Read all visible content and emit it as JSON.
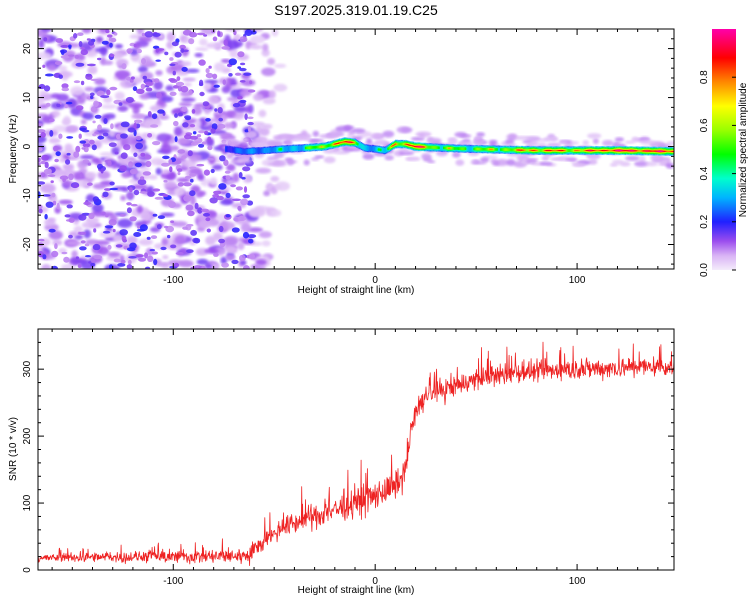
{
  "title": "S197.2025.319.01.19.C25",
  "chart_data": [
    {
      "type": "heatmap",
      "xlabel": "Height of straight line (km)",
      "ylabel": "Frequency (Hz)",
      "xlim": [
        -167,
        148
      ],
      "ylim": [
        -25,
        24
      ],
      "xticks": [
        -100,
        0,
        100
      ],
      "yticks": [
        -20,
        -10,
        0,
        10,
        20
      ],
      "colorbar": {
        "label": "Normalized spectral amplitude",
        "range": [
          0,
          1
        ],
        "ticks": [
          0.0,
          0.2,
          0.4,
          0.6,
          0.8
        ]
      },
      "noise_region_km": [
        -167,
        -60
      ],
      "signal_ridge": {
        "x": [
          -73,
          -65,
          -55,
          -45,
          -35,
          -25,
          -20,
          -15,
          -10,
          -5,
          0,
          5,
          10,
          15,
          20,
          30,
          40,
          60,
          80,
          100,
          120,
          148
        ],
        "frequency": [
          -0.5,
          -1.0,
          -0.8,
          -0.5,
          -0.3,
          0.0,
          0.5,
          1.0,
          0.8,
          -0.3,
          -0.5,
          -0.8,
          0.5,
          0.5,
          0.0,
          -0.2,
          -0.4,
          -0.6,
          -0.8,
          -0.8,
          -0.8,
          -1.0
        ],
        "amplitude": [
          0.3,
          0.35,
          0.45,
          0.5,
          0.6,
          0.7,
          0.85,
          0.9,
          0.75,
          0.55,
          0.5,
          0.55,
          0.85,
          0.8,
          0.95,
          0.7,
          0.65,
          0.7,
          0.85,
          0.8,
          0.95,
          0.9
        ]
      }
    },
    {
      "type": "line",
      "xlabel": "Height of straight line (km)",
      "ylabel": "SNR (10 * v/v)",
      "xlim": [
        -167,
        148
      ],
      "ylim": [
        0,
        360
      ],
      "xticks": [
        -100,
        0,
        100
      ],
      "yticks": [
        0,
        100,
        200,
        300
      ],
      "series": [
        {
          "name": "SNR",
          "color": "#ee2222",
          "trend_x": [
            -167,
            -130,
            -80,
            -62,
            -55,
            -45,
            -30,
            -15,
            0,
            10,
            15,
            18,
            22,
            30,
            50,
            70,
            100,
            148
          ],
          "trend_y": [
            18,
            19,
            20,
            22,
            45,
            65,
            80,
            95,
            110,
            125,
            145,
            215,
            250,
            265,
            285,
            295,
            300,
            305
          ],
          "noise_amplitude_x": [
            -167,
            -60,
            0,
            20,
            148
          ],
          "noise_amplitude_y": [
            8,
            18,
            35,
            25,
            22
          ]
        }
      ]
    }
  ]
}
